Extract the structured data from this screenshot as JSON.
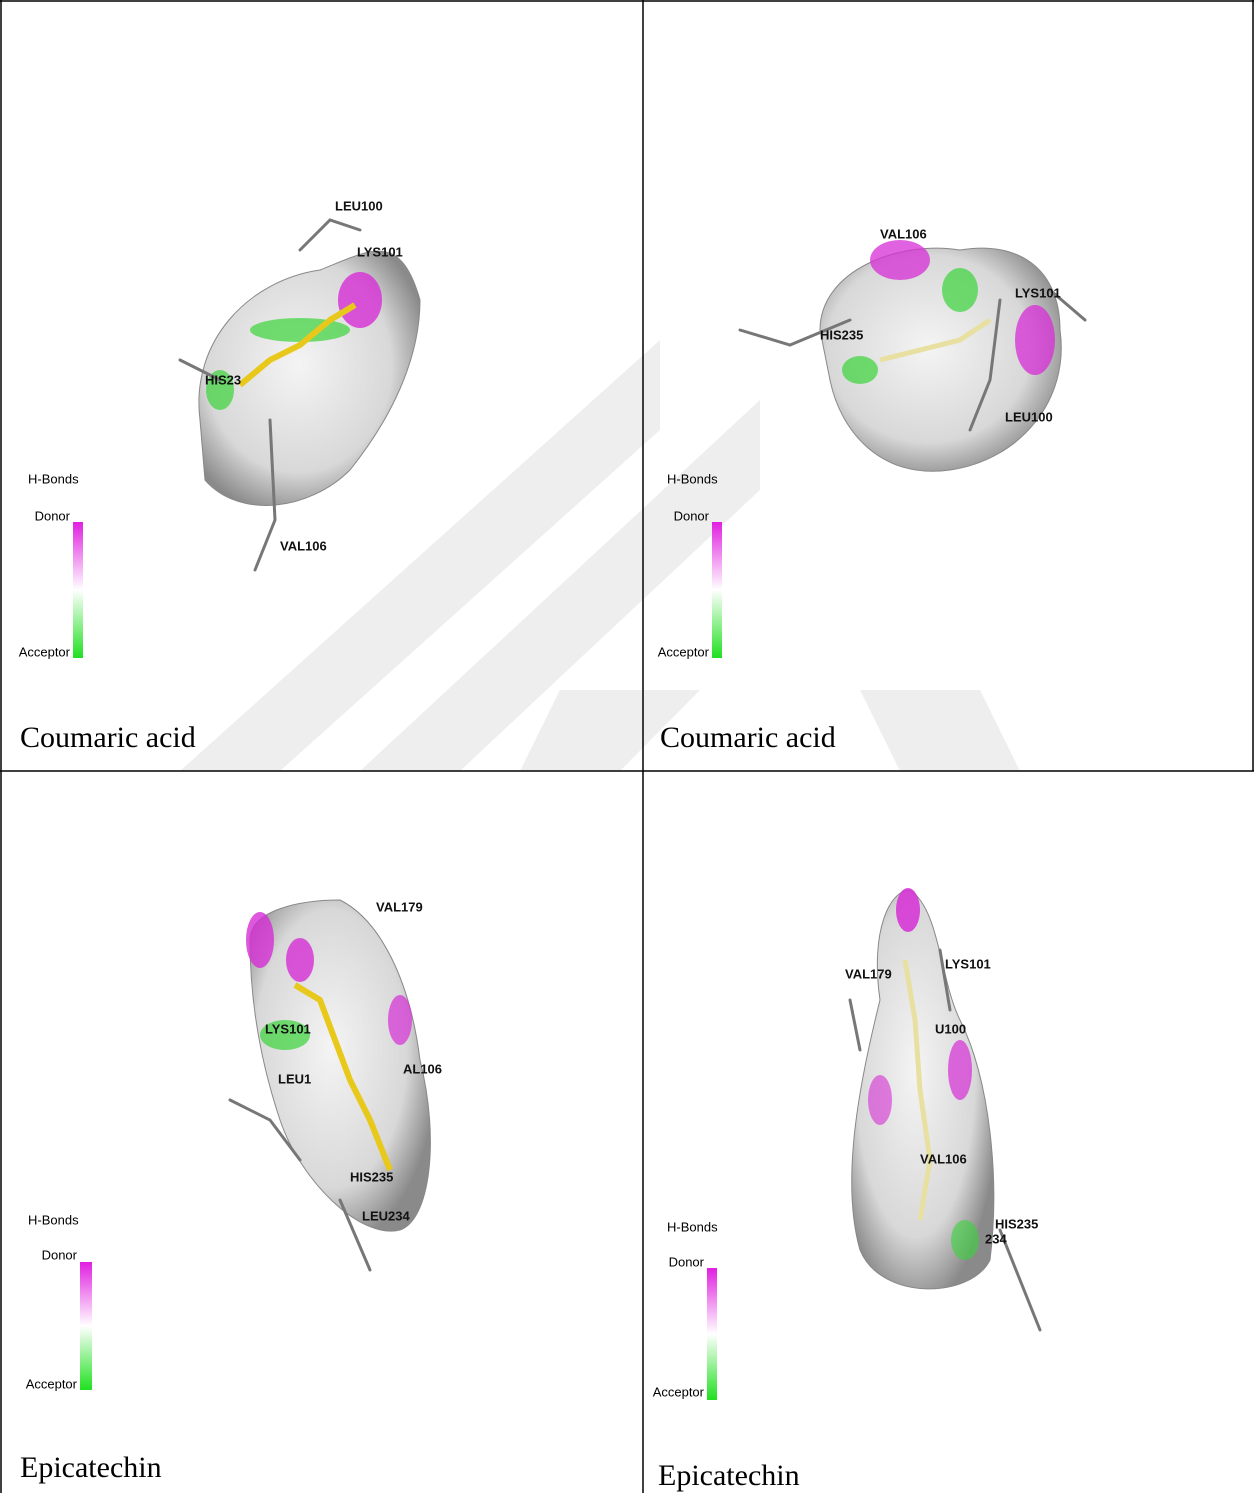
{
  "panels": [
    {
      "labels": [
        "LEU100",
        "LYS101",
        "HIS23",
        "VAL106"
      ],
      "legend": {
        "title": "H-Bonds",
        "donor": "Donor",
        "acceptor": "Acceptor"
      },
      "caption": "Coumaric acid"
    },
    {
      "labels": [
        "VAL106",
        "LYS101",
        "HIS235",
        "LEU100"
      ],
      "legend": {
        "title": "H-Bonds",
        "donor": "Donor",
        "acceptor": "Acceptor"
      },
      "caption": "Coumaric acid"
    },
    {
      "labels": [
        "VAL179",
        "LYS101",
        "LEU1",
        "AL106",
        "HIS235",
        "LEU234"
      ],
      "legend": {
        "title": "H-Bonds",
        "donor": "Donor",
        "acceptor": "Acceptor"
      },
      "caption": "Epicatechin"
    },
    {
      "labels": [
        "LYS101",
        "VAL179",
        "U100",
        "VAL106",
        "HIS235",
        "234"
      ],
      "legend": {
        "title": "H-Bonds",
        "donor": "Donor",
        "acceptor": "Acceptor"
      },
      "caption": "Epicatechin"
    }
  ]
}
